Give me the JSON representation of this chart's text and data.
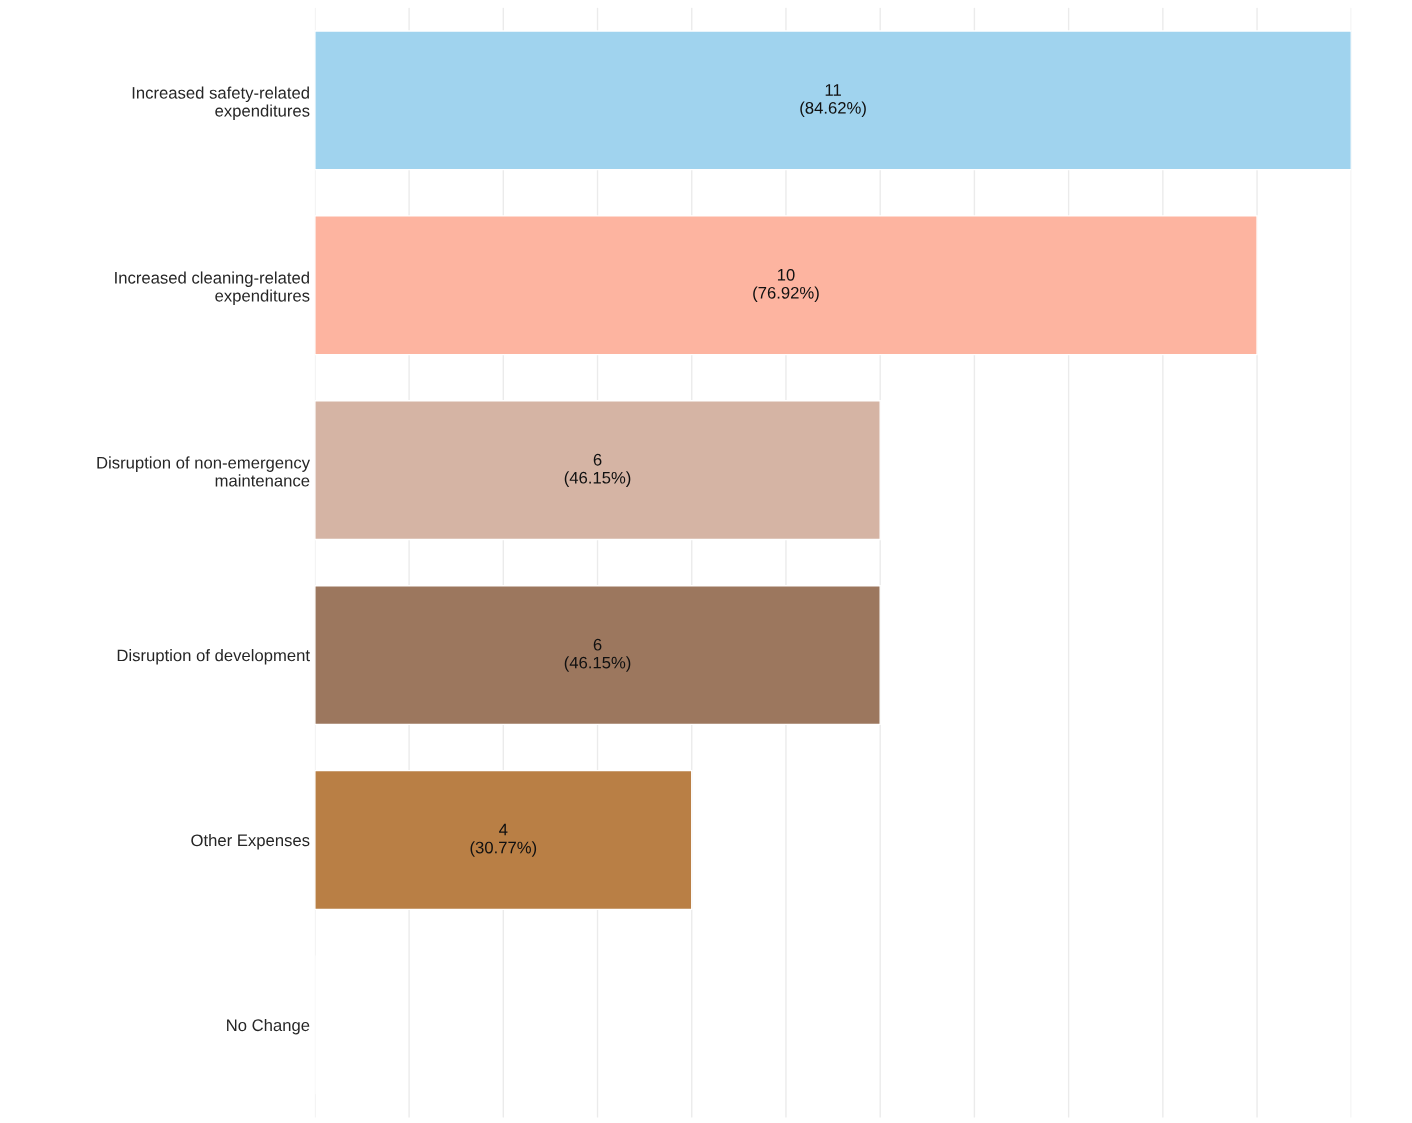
{
  "chart_data": {
    "type": "bar",
    "orientation": "horizontal",
    "categories": [
      "Increased safety-related\nexpenditures",
      "Increased cleaning-related\nexpenditures",
      "Disruption of non-emergency\nmaintenance",
      "Disruption of development",
      "Other Expenses",
      "No Change"
    ],
    "values": [
      11,
      10,
      6,
      6,
      4,
      0
    ],
    "colors": [
      "#a0d3ee",
      "#fdb4a0",
      "#d5b4a4",
      "#9c775e",
      "#b97f45",
      null
    ],
    "value_labels": [
      "11\n(84.62%)",
      "10\n(76.92%)",
      "6\n(46.15%)",
      "6\n(46.15%)",
      "4\n(30.77%)",
      null
    ],
    "xlim": [
      0,
      11
    ],
    "xticks": [
      {
        "value": 0,
        "label": null
      },
      {
        "value": 1,
        "label": null
      },
      {
        "value": 2,
        "label": null
      },
      {
        "value": 3,
        "label": null
      },
      {
        "value": 4,
        "label": null
      },
      {
        "value": 5,
        "label": null
      },
      {
        "value": 6,
        "label": null
      },
      {
        "value": 7,
        "label": null
      },
      {
        "value": 8,
        "label": null
      },
      {
        "value": 9,
        "label": null
      },
      {
        "value": 10,
        "label": null
      },
      {
        "value": 11,
        "label": null
      }
    ],
    "grid": "x",
    "tick_labels": "y"
  }
}
